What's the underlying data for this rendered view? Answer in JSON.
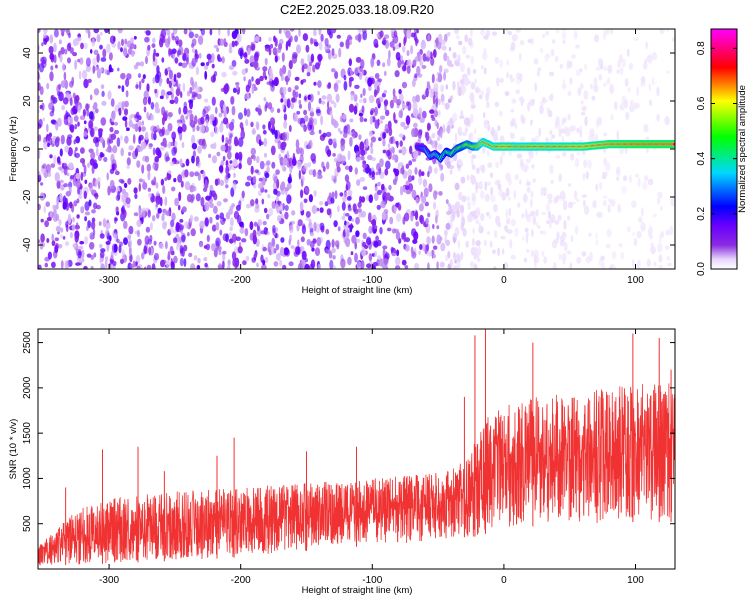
{
  "title": "C2E2.2025.033.18.09.R20",
  "chart_data": [
    {
      "type": "heatmap",
      "xlabel": "Height of straight line (km)",
      "ylabel": "Frequency (Hz)",
      "xlim": [
        -354,
        130
      ],
      "ylim": [
        -50,
        50
      ],
      "xticks": [
        "-300",
        "-200",
        "-100",
        "0",
        "100"
      ],
      "xtick_values": [
        -300,
        -200,
        -100,
        0,
        100
      ],
      "yticks": [
        "-40",
        "-20",
        "0",
        "20",
        "40"
      ],
      "ytick_values": [
        -40,
        -20,
        0,
        20,
        40
      ],
      "colorbar": {
        "label": "Normalized spectral amplitude",
        "range": [
          0.0,
          0.87
        ],
        "ticks": [
          "0.0",
          "0.2",
          "0.4",
          "0.6",
          "0.8"
        ],
        "tick_values": [
          0.0,
          0.2,
          0.4,
          0.6,
          0.8
        ],
        "colors": [
          "#ffffff",
          "#d9bff5",
          "#8a2be2",
          "#6a00ff",
          "#0000ff",
          "#00ffff",
          "#00ff00",
          "#ffff00",
          "#ff0000",
          "#ff00ff"
        ]
      },
      "signal_track": {
        "heights_km": [
          -66,
          -60,
          -56,
          -52,
          -48,
          -44,
          -40,
          -36,
          -32,
          -28,
          -24,
          -20,
          -16,
          -12,
          -8,
          -4,
          0,
          10,
          20,
          40,
          60,
          80,
          100,
          130
        ],
        "frequency_hz": [
          1,
          0,
          -3,
          -2,
          -4,
          -1,
          -2,
          0,
          1,
          2,
          1,
          1,
          3,
          2,
          1,
          1,
          1,
          1,
          1,
          1,
          1,
          2,
          2,
          2
        ],
        "amplitude": [
          0.3,
          0.4,
          0.45,
          0.45,
          0.5,
          0.5,
          0.55,
          0.55,
          0.55,
          0.6,
          0.6,
          0.65,
          0.7,
          0.7,
          0.7,
          0.72,
          0.75,
          0.7,
          0.72,
          0.72,
          0.75,
          0.78,
          0.8,
          0.8
        ]
      },
      "noise_level": {
        "heights_km": [
          -354,
          -300,
          -200,
          -100,
          -60,
          -40,
          -30,
          0,
          130
        ],
        "amplitude": [
          0.2,
          0.2,
          0.2,
          0.2,
          0.18,
          0.08,
          0.04,
          0.03,
          0.02
        ]
      }
    },
    {
      "type": "line",
      "xlabel": "Height of straight line (km)",
      "ylabel": "SNR (10 * v/v)",
      "xlim": [
        -354,
        130
      ],
      "ylim": [
        0,
        2650
      ],
      "xticks": [
        "-300",
        "-200",
        "-100",
        "0",
        "100"
      ],
      "xtick_values": [
        -300,
        -200,
        -100,
        0,
        100
      ],
      "yticks": [
        "500",
        "1000",
        "1500",
        "2000",
        "2500"
      ],
      "ytick_values": [
        500,
        1000,
        1500,
        2000,
        2500
      ],
      "color": "#f03232",
      "envelope": {
        "x": [
          -354,
          -340,
          -320,
          -300,
          -250,
          -200,
          -150,
          -100,
          -60,
          -40,
          -30,
          -20,
          -15,
          -10,
          0,
          20,
          50,
          80,
          100,
          130
        ],
        "upper": [
          250,
          450,
          700,
          780,
          860,
          900,
          950,
          1000,
          1050,
          1100,
          1200,
          1450,
          1650,
          1700,
          1800,
          1900,
          1950,
          2000,
          2050,
          2050
        ],
        "lower": [
          40,
          40,
          50,
          60,
          90,
          130,
          200,
          260,
          300,
          330,
          350,
          360,
          380,
          420,
          450,
          470,
          480,
          500,
          520,
          520
        ]
      },
      "peaks": [
        {
          "x": -333,
          "y": 900
        },
        {
          "x": -305,
          "y": 1320
        },
        {
          "x": -278,
          "y": 1350
        },
        {
          "x": -258,
          "y": 1080
        },
        {
          "x": -218,
          "y": 1250
        },
        {
          "x": -205,
          "y": 1450
        },
        {
          "x": -150,
          "y": 1300
        },
        {
          "x": -112,
          "y": 1350
        },
        {
          "x": -30,
          "y": 1900
        },
        {
          "x": -22,
          "y": 2580
        },
        {
          "x": -14,
          "y": 2650
        },
        {
          "x": 22,
          "y": 2500
        },
        {
          "x": 98,
          "y": 2600
        },
        {
          "x": 118,
          "y": 2550
        },
        {
          "x": 127,
          "y": 2200
        }
      ]
    }
  ]
}
